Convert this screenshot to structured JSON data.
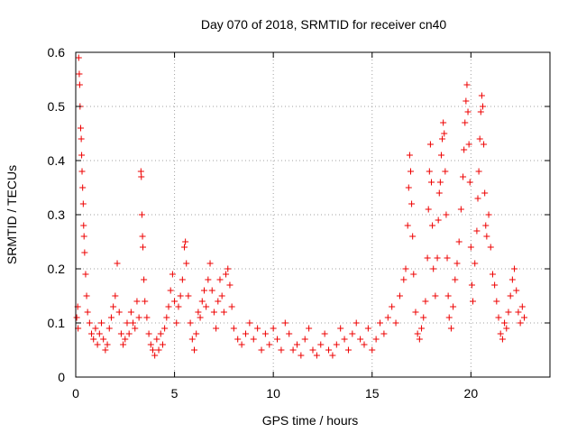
{
  "chart_data": {
    "type": "scatter",
    "title": "Day 070 of 2018, SRMTID for receiver cn40",
    "xlabel": "GPS time / hours",
    "ylabel": "SRMTID / TECUs",
    "xlim": [
      0,
      24
    ],
    "ylim": [
      0,
      0.6
    ],
    "xticks": [
      0,
      5,
      10,
      15,
      20
    ],
    "yticks": [
      0,
      0.1,
      0.2,
      0.3,
      0.4,
      0.5,
      0.6
    ],
    "xtick_labels": [
      "0",
      "5",
      "10",
      "15",
      "20"
    ],
    "ytick_labels": [
      "0",
      "0.1",
      "0.2",
      "0.3",
      "0.4",
      "0.5",
      "0.6"
    ],
    "grid": true,
    "marker": "+",
    "series_color": "#ee0000",
    "series": [
      {
        "name": "SRMTID",
        "points": [
          [
            0.05,
            0.11
          ],
          [
            0.1,
            0.13
          ],
          [
            0.12,
            0.09
          ],
          [
            0.15,
            0.59
          ],
          [
            0.18,
            0.56
          ],
          [
            0.2,
            0.54
          ],
          [
            0.22,
            0.5
          ],
          [
            0.25,
            0.46
          ],
          [
            0.28,
            0.44
          ],
          [
            0.3,
            0.41
          ],
          [
            0.32,
            0.38
          ],
          [
            0.35,
            0.35
          ],
          [
            0.38,
            0.32
          ],
          [
            0.4,
            0.28
          ],
          [
            0.42,
            0.26
          ],
          [
            0.45,
            0.23
          ],
          [
            0.5,
            0.19
          ],
          [
            0.55,
            0.15
          ],
          [
            0.6,
            0.12
          ],
          [
            0.7,
            0.1
          ],
          [
            0.8,
            0.08
          ],
          [
            0.9,
            0.07
          ],
          [
            1.0,
            0.09
          ],
          [
            1.1,
            0.06
          ],
          [
            1.2,
            0.08
          ],
          [
            1.3,
            0.1
          ],
          [
            1.4,
            0.07
          ],
          [
            1.5,
            0.05
          ],
          [
            1.6,
            0.06
          ],
          [
            1.7,
            0.09
          ],
          [
            1.8,
            0.11
          ],
          [
            1.9,
            0.13
          ],
          [
            2.0,
            0.15
          ],
          [
            2.1,
            0.21
          ],
          [
            2.2,
            0.12
          ],
          [
            2.3,
            0.08
          ],
          [
            2.4,
            0.06
          ],
          [
            2.5,
            0.07
          ],
          [
            2.6,
            0.1
          ],
          [
            2.7,
            0.08
          ],
          [
            2.8,
            0.12
          ],
          [
            2.9,
            0.1
          ],
          [
            3.0,
            0.09
          ],
          [
            3.1,
            0.14
          ],
          [
            3.2,
            0.11
          ],
          [
            3.3,
            0.38
          ],
          [
            3.32,
            0.37
          ],
          [
            3.35,
            0.3
          ],
          [
            3.38,
            0.26
          ],
          [
            3.4,
            0.24
          ],
          [
            3.45,
            0.18
          ],
          [
            3.5,
            0.14
          ],
          [
            3.6,
            0.11
          ],
          [
            3.7,
            0.08
          ],
          [
            3.8,
            0.06
          ],
          [
            3.9,
            0.05
          ],
          [
            4.0,
            0.04
          ],
          [
            4.1,
            0.07
          ],
          [
            4.2,
            0.05
          ],
          [
            4.3,
            0.08
          ],
          [
            4.4,
            0.06
          ],
          [
            4.5,
            0.09
          ],
          [
            4.6,
            0.11
          ],
          [
            4.7,
            0.13
          ],
          [
            4.8,
            0.16
          ],
          [
            4.9,
            0.19
          ],
          [
            5.0,
            0.14
          ],
          [
            5.1,
            0.1
          ],
          [
            5.2,
            0.13
          ],
          [
            5.3,
            0.15
          ],
          [
            5.4,
            0.18
          ],
          [
            5.5,
            0.24
          ],
          [
            5.55,
            0.25
          ],
          [
            5.6,
            0.21
          ],
          [
            5.7,
            0.15
          ],
          [
            5.8,
            0.1
          ],
          [
            5.9,
            0.07
          ],
          [
            6.0,
            0.05
          ],
          [
            6.1,
            0.08
          ],
          [
            6.2,
            0.12
          ],
          [
            6.3,
            0.11
          ],
          [
            6.4,
            0.14
          ],
          [
            6.5,
            0.16
          ],
          [
            6.6,
            0.13
          ],
          [
            6.7,
            0.18
          ],
          [
            6.8,
            0.21
          ],
          [
            6.9,
            0.16
          ],
          [
            7.0,
            0.12
          ],
          [
            7.1,
            0.09
          ],
          [
            7.2,
            0.14
          ],
          [
            7.3,
            0.18
          ],
          [
            7.4,
            0.15
          ],
          [
            7.5,
            0.12
          ],
          [
            7.6,
            0.19
          ],
          [
            7.7,
            0.2
          ],
          [
            7.8,
            0.17
          ],
          [
            7.9,
            0.13
          ],
          [
            8.0,
            0.09
          ],
          [
            8.2,
            0.07
          ],
          [
            8.4,
            0.06
          ],
          [
            8.6,
            0.08
          ],
          [
            8.8,
            0.1
          ],
          [
            9.0,
            0.07
          ],
          [
            9.2,
            0.09
          ],
          [
            9.4,
            0.05
          ],
          [
            9.6,
            0.08
          ],
          [
            9.8,
            0.06
          ],
          [
            10.0,
            0.09
          ],
          [
            10.2,
            0.07
          ],
          [
            10.4,
            0.05
          ],
          [
            10.6,
            0.1
          ],
          [
            10.8,
            0.08
          ],
          [
            11.0,
            0.05
          ],
          [
            11.2,
            0.06
          ],
          [
            11.4,
            0.04
          ],
          [
            11.6,
            0.07
          ],
          [
            11.8,
            0.09
          ],
          [
            12.0,
            0.05
          ],
          [
            12.2,
            0.04
          ],
          [
            12.4,
            0.06
          ],
          [
            12.6,
            0.08
          ],
          [
            12.8,
            0.05
          ],
          [
            13.0,
            0.04
          ],
          [
            13.2,
            0.06
          ],
          [
            13.4,
            0.09
          ],
          [
            13.6,
            0.07
          ],
          [
            13.8,
            0.05
          ],
          [
            14.0,
            0.08
          ],
          [
            14.2,
            0.1
          ],
          [
            14.4,
            0.07
          ],
          [
            14.6,
            0.06
          ],
          [
            14.8,
            0.09
          ],
          [
            15.0,
            0.05
          ],
          [
            15.2,
            0.07
          ],
          [
            15.4,
            0.1
          ],
          [
            15.6,
            0.08
          ],
          [
            15.8,
            0.11
          ],
          [
            16.0,
            0.13
          ],
          [
            16.2,
            0.1
          ],
          [
            16.4,
            0.15
          ],
          [
            16.6,
            0.18
          ],
          [
            16.7,
            0.2
          ],
          [
            16.8,
            0.28
          ],
          [
            16.85,
            0.35
          ],
          [
            16.9,
            0.41
          ],
          [
            16.95,
            0.38
          ],
          [
            17.0,
            0.32
          ],
          [
            17.05,
            0.26
          ],
          [
            17.1,
            0.19
          ],
          [
            17.2,
            0.12
          ],
          [
            17.3,
            0.08
          ],
          [
            17.4,
            0.07
          ],
          [
            17.5,
            0.09
          ],
          [
            17.6,
            0.11
          ],
          [
            17.7,
            0.14
          ],
          [
            17.8,
            0.22
          ],
          [
            17.85,
            0.31
          ],
          [
            17.9,
            0.38
          ],
          [
            17.95,
            0.43
          ],
          [
            18.0,
            0.36
          ],
          [
            18.05,
            0.28
          ],
          [
            18.1,
            0.2
          ],
          [
            18.2,
            0.15
          ],
          [
            18.3,
            0.22
          ],
          [
            18.35,
            0.29
          ],
          [
            18.4,
            0.34
          ],
          [
            18.45,
            0.36
          ],
          [
            18.5,
            0.41
          ],
          [
            18.55,
            0.44
          ],
          [
            18.6,
            0.47
          ],
          [
            18.65,
            0.45
          ],
          [
            18.7,
            0.38
          ],
          [
            18.75,
            0.3
          ],
          [
            18.8,
            0.22
          ],
          [
            18.85,
            0.15
          ],
          [
            18.9,
            0.11
          ],
          [
            19.0,
            0.09
          ],
          [
            19.1,
            0.13
          ],
          [
            19.2,
            0.18
          ],
          [
            19.3,
            0.21
          ],
          [
            19.4,
            0.25
          ],
          [
            19.5,
            0.31
          ],
          [
            19.6,
            0.37
          ],
          [
            19.65,
            0.42
          ],
          [
            19.7,
            0.47
          ],
          [
            19.75,
            0.51
          ],
          [
            19.8,
            0.54
          ],
          [
            19.85,
            0.49
          ],
          [
            19.9,
            0.43
          ],
          [
            19.95,
            0.36
          ],
          [
            20.0,
            0.24
          ],
          [
            20.05,
            0.17
          ],
          [
            20.1,
            0.14
          ],
          [
            20.2,
            0.21
          ],
          [
            20.3,
            0.27
          ],
          [
            20.35,
            0.33
          ],
          [
            20.4,
            0.38
          ],
          [
            20.45,
            0.44
          ],
          [
            20.5,
            0.49
          ],
          [
            20.55,
            0.52
          ],
          [
            20.6,
            0.5
          ],
          [
            20.65,
            0.43
          ],
          [
            20.7,
            0.34
          ],
          [
            20.75,
            0.28
          ],
          [
            20.8,
            0.26
          ],
          [
            20.9,
            0.3
          ],
          [
            21.0,
            0.24
          ],
          [
            21.1,
            0.19
          ],
          [
            21.2,
            0.17
          ],
          [
            21.3,
            0.14
          ],
          [
            21.4,
            0.11
          ],
          [
            21.5,
            0.08
          ],
          [
            21.6,
            0.07
          ],
          [
            21.7,
            0.1
          ],
          [
            21.8,
            0.09
          ],
          [
            21.9,
            0.12
          ],
          [
            22.0,
            0.15
          ],
          [
            22.1,
            0.18
          ],
          [
            22.2,
            0.2
          ],
          [
            22.3,
            0.16
          ],
          [
            22.4,
            0.12
          ],
          [
            22.5,
            0.1
          ],
          [
            22.6,
            0.13
          ],
          [
            22.7,
            0.11
          ]
        ]
      }
    ]
  }
}
